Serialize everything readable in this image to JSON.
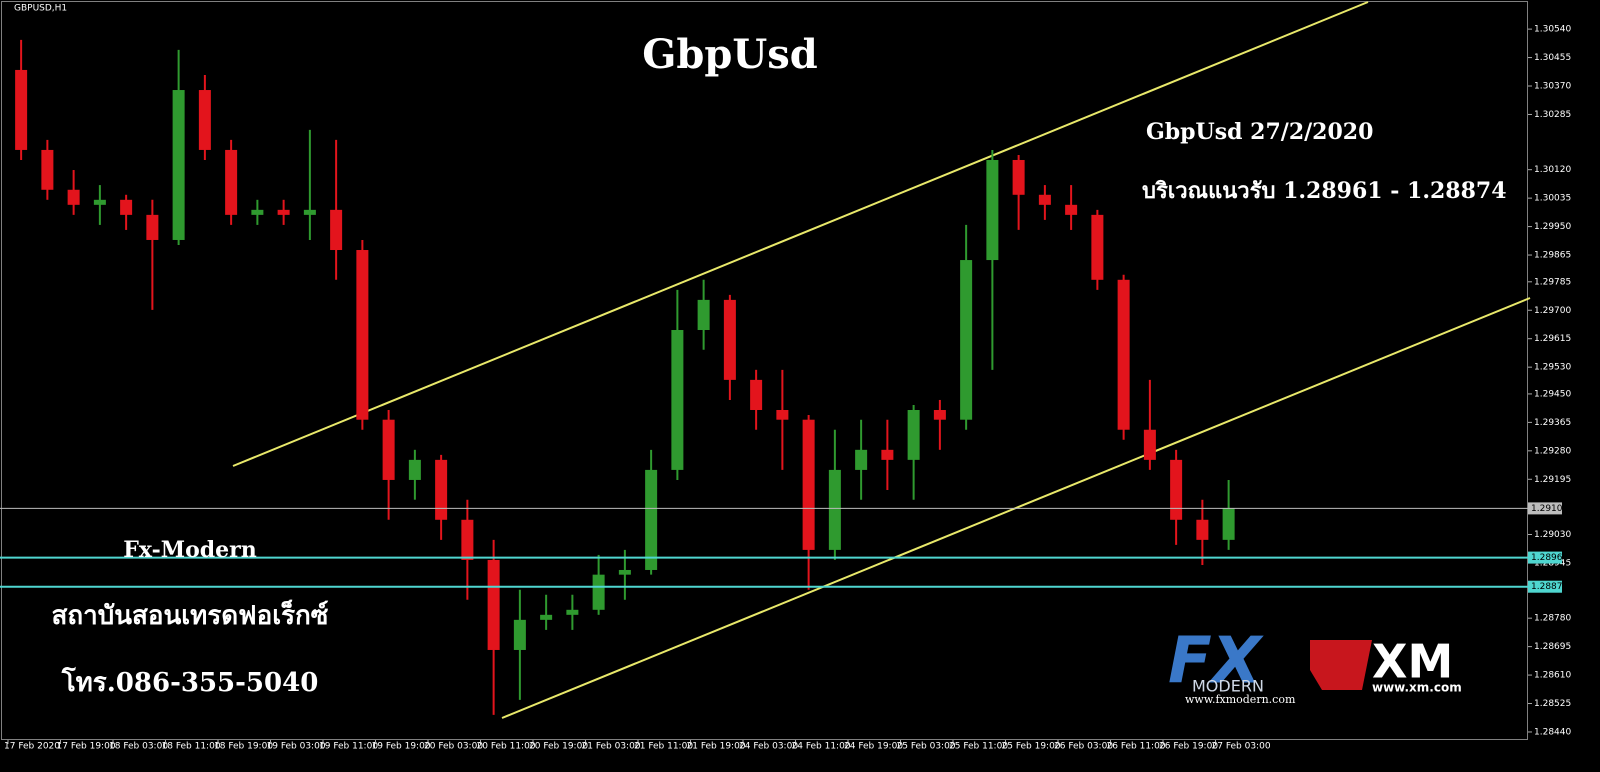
{
  "chart_data": {
    "type": "candlestick",
    "symbol": "GBPUSD,H1",
    "title": "GbpUsd",
    "annotations": [
      "GbpUsd 27/2/2020",
      "บริเวณแนวรับ 1.28961 - 1.28874"
    ],
    "brand": {
      "name": "Fx-Modern",
      "tagline": "สถาบันสอนเทรดฟอเร็กซ์",
      "phone": "โทร.086-355-5040",
      "logo1": "FX",
      "logo1_sub": "MODERN",
      "logo1_url": "www.fxmodern.com",
      "logo2": "XM",
      "logo2_url": "www.xm.com"
    },
    "categories": [
      "17 Feb 2020",
      null,
      "17 Feb 19:00",
      null,
      "18 Feb 03:00",
      null,
      "18 Feb 11:00",
      null,
      "18 Feb 19:00",
      null,
      "19 Feb 03:00",
      null,
      "19 Feb 11:00",
      null,
      "19 Feb 19:00",
      null,
      "20 Feb 03:00",
      null,
      "20 Feb 11:00",
      null,
      "20 Feb 19:00",
      null,
      "21 Feb 03:00",
      null,
      "21 Feb 11:00",
      null,
      "21 Feb 19:00",
      null,
      "24 Feb 03:00",
      null,
      "24 Feb 11:00",
      null,
      "24 Feb 19:00",
      null,
      "25 Feb 03:00",
      null,
      "25 Feb 11:00",
      null,
      "25 Feb 19:00",
      null,
      "26 Feb 03:00",
      null,
      "26 Feb 11:00",
      null,
      "26 Feb 19:00",
      null,
      "27 Feb 03:00"
    ],
    "open": [
      1.30418,
      1.30179,
      1.3006,
      1.30015,
      1.3003,
      1.29985,
      1.2991,
      1.30358,
      1.30179,
      1.29985,
      1.3,
      1.29985,
      1.3,
      1.2988,
      1.29373,
      1.29193,
      1.29253,
      1.29074,
      1.28954,
      1.28685,
      1.28775,
      1.2879,
      1.28805,
      1.2891,
      1.28924,
      1.29223,
      1.29641,
      1.29731,
      1.29492,
      1.29402,
      1.29373,
      1.28984,
      1.29223,
      1.29283,
      1.29253,
      1.29402,
      1.29373,
      1.2985,
      1.30149,
      1.30045,
      1.30015,
      1.29985,
      1.29791,
      1.29343,
      1.29253,
      1.29074,
      1.29014
    ],
    "high": [
      1.30508,
      1.30209,
      1.30119,
      1.30074,
      1.30045,
      1.3003,
      1.30478,
      1.30403,
      1.30209,
      1.3003,
      1.3003,
      1.30239,
      1.30209,
      1.2991,
      1.29402,
      1.29283,
      1.29268,
      1.29134,
      1.29014,
      1.28865,
      1.2885,
      1.2885,
      1.28969,
      1.28984,
      1.29283,
      1.29761,
      1.29791,
      1.29746,
      1.29522,
      1.29522,
      1.29387,
      1.29343,
      1.29373,
      1.29373,
      1.29417,
      1.29432,
      1.29955,
      1.30179,
      1.30164,
      1.30074,
      1.30074,
      1.3,
      1.29806,
      1.29492,
      1.29283,
      1.29134,
      1.29193
    ],
    "low": [
      1.30149,
      1.3003,
      1.29985,
      1.29955,
      1.2994,
      1.29701,
      1.29895,
      1.30149,
      1.29955,
      1.29955,
      1.29955,
      1.2991,
      1.29791,
      1.29343,
      1.29074,
      1.29134,
      1.29014,
      1.28835,
      1.28491,
      1.28536,
      1.28745,
      1.28745,
      1.2879,
      1.28835,
      1.2891,
      1.29193,
      1.29582,
      1.29432,
      1.29343,
      1.29223,
      1.28865,
      1.28954,
      1.29134,
      1.29163,
      1.29134,
      1.29283,
      1.29343,
      1.29522,
      1.2994,
      1.2997,
      1.2994,
      1.29761,
      1.29313,
      1.29223,
      1.28999,
      1.28939,
      1.28984
    ],
    "close": [
      1.30179,
      1.3006,
      1.30015,
      1.3003,
      1.29985,
      1.2991,
      1.30358,
      1.30179,
      1.29985,
      1.3,
      1.29985,
      1.3,
      1.2988,
      1.29373,
      1.29193,
      1.29253,
      1.29074,
      1.28954,
      1.28685,
      1.28775,
      1.2879,
      1.28805,
      1.2891,
      1.28924,
      1.29223,
      1.29641,
      1.29731,
      1.29492,
      1.29402,
      1.29373,
      1.28984,
      1.29223,
      1.29283,
      1.29253,
      1.29402,
      1.29373,
      1.2985,
      1.30149,
      1.30045,
      1.30015,
      1.29985,
      1.29791,
      1.29343,
      1.29253,
      1.29074,
      1.29014,
      1.29108
    ],
    "up_color": "#2f9a2f",
    "down_color": "#e3141c",
    "ylim": [
      1.28416,
      1.30627
    ],
    "yticks": [
      {
        "value": 1.3054,
        "label": "1.30540"
      },
      1.30455,
      {
        "value": 1.3037,
        "label": "1.30370"
      },
      1.30285,
      {
        "value": 1.3012,
        "label": "1.30120"
      },
      1.30035,
      {
        "value": 1.2995,
        "label": "1.29950"
      },
      1.29865,
      1.29785,
      {
        "value": 1.297,
        "label": "1.29700"
      },
      1.29615,
      {
        "value": 1.2953,
        "label": "1.29530"
      },
      {
        "value": 1.2945,
        "label": "1.29450"
      },
      1.29365,
      {
        "value": 1.2928,
        "label": "1.29280"
      },
      1.29195,
      {
        "value": 1.2903,
        "label": "1.29030"
      },
      1.28945,
      {
        "value": 1.2878,
        "label": "1.28780"
      },
      1.28695,
      {
        "value": 1.2861,
        "label": "1.28610"
      },
      1.28525,
      {
        "value": 1.2844,
        "label": "1.28440"
      }
    ],
    "price_lines": [
      {
        "value": 1.29108,
        "color": "#bdbdbd"
      },
      {
        "value": 1.28961,
        "color": "#4fd6d0"
      },
      {
        "value": 1.28874,
        "color": "#4fd6d0"
      }
    ]
  }
}
